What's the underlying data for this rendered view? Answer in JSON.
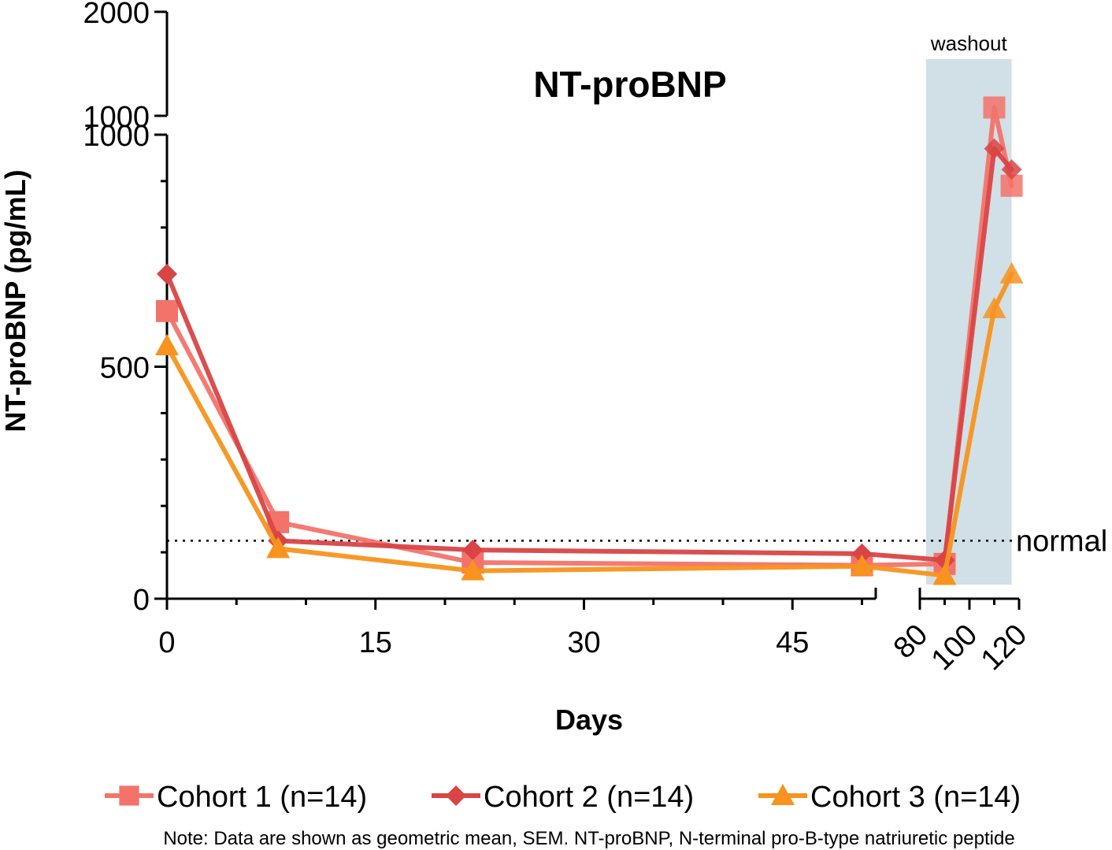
{
  "chart_data": {
    "type": "line",
    "title": "NT-proBNP",
    "xlabel": "Days",
    "ylabel": "NT-proBNP (pg/mL)",
    "y_axis": {
      "broken": true,
      "lower_range": [
        0,
        1000
      ],
      "upper_range": [
        1000,
        2000
      ],
      "lower_ticks": [
        "0",
        "500",
        "1000"
      ],
      "upper_ticks": [
        "1000",
        "2000"
      ]
    },
    "x_axis": {
      "broken": true,
      "left_range": [
        0,
        51
      ],
      "right_range": [
        80,
        120
      ],
      "left_ticks": [
        "0",
        "15",
        "30",
        "45"
      ],
      "right_ticks": [
        "80",
        "100",
        "120"
      ]
    },
    "reference_line": {
      "label": "normal",
      "value": 125
    },
    "shaded_region": {
      "label": "washout",
      "x_start": 80,
      "x_end": 117,
      "color": "#d1dfe6"
    },
    "series": [
      {
        "name": "Cohort 1 (n=14)",
        "color": "#f3736a",
        "marker": "square",
        "x": [
          0,
          8,
          22,
          50,
          90,
          110,
          117
        ],
        "y": [
          620,
          165,
          78,
          72,
          75,
          1080,
          890
        ]
      },
      {
        "name": "Cohort 2 (n=14)",
        "color": "#d94444",
        "marker": "diamond",
        "x": [
          0,
          8,
          22,
          50,
          90,
          110,
          117
        ],
        "y": [
          700,
          125,
          105,
          97,
          83,
          970,
          925
        ]
      },
      {
        "name": "Cohort 3 (n=14)",
        "color": "#f7931e",
        "marker": "triangle",
        "x": [
          0,
          8,
          22,
          50,
          90,
          110,
          117
        ],
        "y": [
          545,
          108,
          60,
          70,
          50,
          625,
          700
        ]
      }
    ],
    "legend": {
      "placement": "bottom"
    }
  },
  "footnote": "Note: Data are shown as geometric mean, SEM.  NT-proBNP, N-terminal pro-B-type natriuretic peptide"
}
